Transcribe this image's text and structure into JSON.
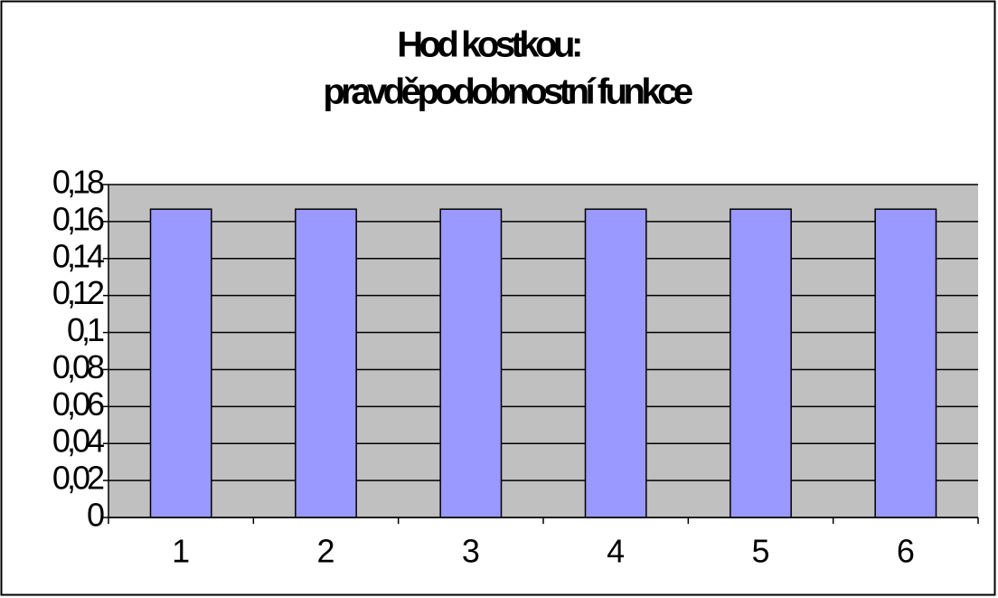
{
  "chart_data": {
    "type": "bar",
    "title": [
      "Hod kostkou:",
      "pravděpodobnostní funkce"
    ],
    "categories": [
      "1",
      "2",
      "3",
      "4",
      "5",
      "6"
    ],
    "values": [
      0.1667,
      0.1667,
      0.1667,
      0.1667,
      0.1667,
      0.1667
    ],
    "color": "#9999ff",
    "plot_background": "#c0c0c0",
    "ylim": [
      0,
      0.18
    ],
    "yticks": [
      0,
      {
        "value": 0.02,
        "label": "0,02"
      },
      {
        "value": 0.04,
        "label": "0,04"
      },
      {
        "value": 0.06,
        "label": "0,06"
      },
      {
        "value": 0.08,
        "label": "0,08"
      },
      {
        "value": 0.1,
        "label": "0,1"
      },
      {
        "value": 0.12,
        "label": "0,12"
      },
      {
        "value": 0.14,
        "label": "0,14"
      },
      {
        "value": 0.16,
        "label": "0,16"
      },
      {
        "value": 0.18,
        "label": "0,18"
      }
    ],
    "grid": true
  }
}
